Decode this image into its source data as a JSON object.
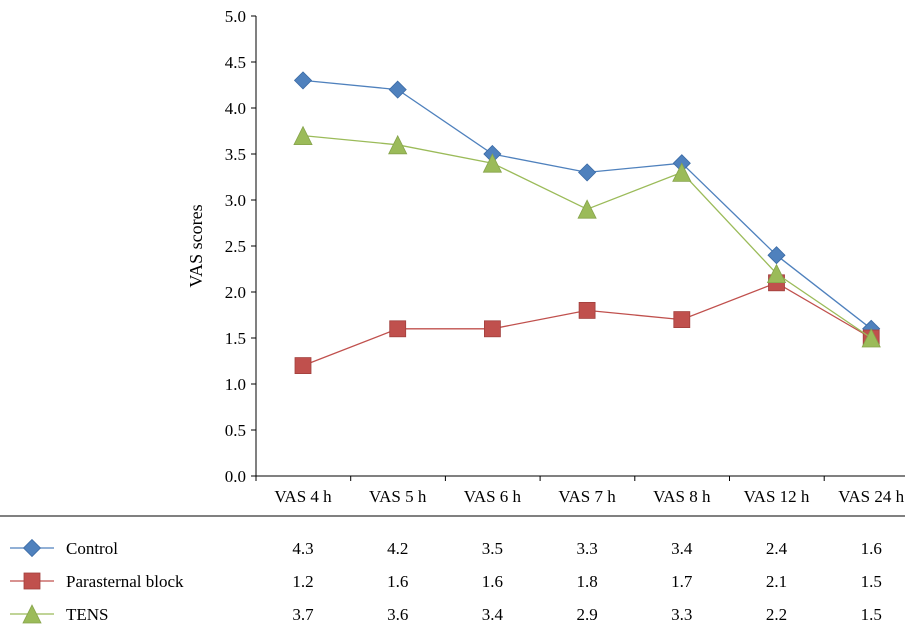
{
  "chart_data": {
    "type": "line",
    "title": "",
    "xlabel": "",
    "ylabel": "VAS scores",
    "ylim": [
      0,
      5
    ],
    "yticks": [
      "0.0",
      "0.5",
      "1.0",
      "1.5",
      "2.0",
      "2.5",
      "3.0",
      "3.5",
      "4.0",
      "4.5",
      "5.0"
    ],
    "categories": [
      "VAS 4 h",
      "VAS 5 h",
      "VAS 6 h",
      "VAS 7 h",
      "VAS 8 h",
      "VAS 12 h",
      "VAS 24 h"
    ],
    "grid": false,
    "legend": "data table below chart",
    "series": [
      {
        "name": "Control",
        "values": [
          4.3,
          4.2,
          3.5,
          3.3,
          3.4,
          2.4,
          1.6
        ],
        "labels": [
          "4.3",
          "4.2",
          "3.5",
          "3.3",
          "3.4",
          "2.4",
          "1.6"
        ],
        "color": "#4f81bd",
        "marker": "diamond"
      },
      {
        "name": "Parasternal block",
        "values": [
          1.2,
          1.6,
          1.6,
          1.8,
          1.7,
          2.1,
          1.5
        ],
        "labels": [
          "1.2",
          "1.6",
          "1.6",
          "1.8",
          "1.7",
          "2.1",
          "1.5"
        ],
        "color": "#c0504d",
        "marker": "square"
      },
      {
        "name": "TENS",
        "values": [
          3.7,
          3.6,
          3.4,
          2.9,
          3.3,
          2.2,
          1.5
        ],
        "labels": [
          "3.7",
          "3.6",
          "3.4",
          "2.9",
          "3.3",
          "2.2",
          "1.5"
        ],
        "color": "#9bbb59",
        "marker": "triangle"
      }
    ]
  }
}
